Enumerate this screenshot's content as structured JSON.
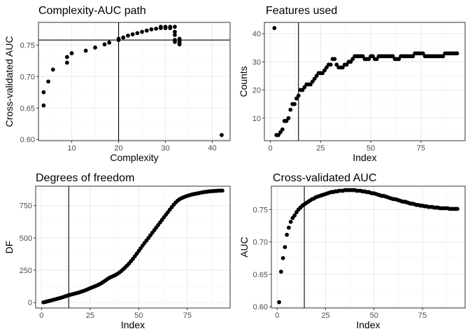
{
  "chart_data": [
    {
      "type": "scatter",
      "title": "Complexity-AUC path",
      "xlabel": "Complexity",
      "ylabel": "Cross-validated AUC",
      "xlim": [
        2.9,
        43.8
      ],
      "ylim": [
        0.598,
        0.786
      ],
      "xticks": [
        10,
        20,
        30,
        40
      ],
      "xtick_labels": [
        "10",
        "20",
        "30",
        "40"
      ],
      "yticks": [
        0.6,
        0.65,
        0.7,
        0.75
      ],
      "ytick_labels": [
        "0.60",
        "0.65",
        "0.70",
        "0.75"
      ],
      "grid": true,
      "reference_lines": {
        "vertical": 20,
        "horizontal": 0.758
      },
      "x": [
        4,
        4,
        5,
        6,
        9,
        9,
        10,
        13,
        15,
        17,
        18,
        20,
        20,
        21,
        22,
        23,
        24,
        25,
        26,
        27,
        28,
        29,
        29,
        30,
        30,
        31,
        31,
        32,
        32,
        32,
        32,
        33,
        33,
        32,
        33,
        33,
        33,
        42
      ],
      "y": [
        0.654,
        0.675,
        0.692,
        0.711,
        0.722,
        0.731,
        0.737,
        0.741,
        0.746,
        0.751,
        0.754,
        0.758,
        0.76,
        0.762,
        0.765,
        0.767,
        0.769,
        0.771,
        0.773,
        0.775,
        0.776,
        0.777,
        0.779,
        0.777,
        0.779,
        0.777,
        0.779,
        0.779,
        0.771,
        0.766,
        0.758,
        0.76,
        0.753,
        0.755,
        0.752,
        0.756,
        0.751,
        0.607
      ]
    },
    {
      "type": "scatter",
      "title": "Features used",
      "xlabel": "Index",
      "ylabel": "Counts",
      "xlim": [
        -3,
        97
      ],
      "ylim": [
        2,
        44
      ],
      "xticks": [
        0,
        25,
        50,
        75
      ],
      "xtick_labels": [
        "0",
        "25",
        "50",
        "75"
      ],
      "yticks": [
        10,
        20,
        30,
        40
      ],
      "ytick_labels": [
        "10",
        "20",
        "30",
        "40"
      ],
      "grid": true,
      "reference_lines": {
        "vertical": 14
      },
      "x": [
        2,
        3,
        4,
        5,
        6,
        7,
        8,
        9,
        10,
        11,
        12,
        13,
        14,
        15,
        16,
        17,
        18,
        19,
        20,
        21,
        22,
        23,
        24,
        25,
        26,
        27,
        28,
        29,
        30,
        31,
        32,
        33,
        34,
        35,
        36,
        37,
        38,
        39,
        40,
        41,
        42,
        43,
        44,
        45,
        46,
        47,
        48,
        49,
        50,
        51,
        52,
        53,
        54,
        55,
        56,
        57,
        58,
        59,
        60,
        61,
        62,
        63,
        64,
        65,
        66,
        67,
        68,
        69,
        70,
        71,
        72,
        73,
        74,
        75,
        76,
        77,
        78,
        79,
        80,
        81,
        82,
        83,
        84,
        85,
        86,
        87,
        88,
        89,
        90,
        91,
        92,
        93
      ],
      "y": [
        42,
        4,
        4,
        5,
        6,
        9,
        9,
        10,
        13,
        15,
        15,
        17,
        18,
        20,
        20,
        21,
        22,
        22,
        22,
        23,
        24,
        25,
        26,
        26,
        26,
        27,
        28,
        29,
        29,
        31,
        31,
        29,
        28,
        28,
        28,
        29,
        29,
        30,
        30,
        31,
        32,
        32,
        32,
        32,
        32,
        31,
        31,
        31,
        32,
        32,
        31,
        31,
        32,
        32,
        32,
        32,
        32,
        32,
        32,
        32,
        31,
        31,
        31,
        32,
        32,
        32,
        32,
        32,
        32,
        32,
        33,
        33,
        33,
        33,
        33,
        32,
        32,
        32,
        32,
        32,
        32,
        32,
        32,
        32,
        32,
        33,
        33,
        33,
        33,
        33,
        33,
        33
      ]
    },
    {
      "type": "scatter",
      "title": "Degrees of freedom",
      "xlabel": "Index",
      "ylabel": "DF",
      "xlim": [
        -3,
        97
      ],
      "ylim": [
        -42,
        900
      ],
      "xticks": [
        0,
        25,
        50,
        75
      ],
      "xtick_labels": [
        "0",
        "25",
        "50",
        "75"
      ],
      "yticks": [
        0,
        250,
        500,
        750
      ],
      "ytick_labels": [
        "0",
        "250",
        "500",
        "750"
      ],
      "grid": true,
      "reference_lines": {
        "vertical": 14
      },
      "x": [
        1,
        2,
        3,
        4,
        5,
        6,
        7,
        8,
        9,
        10,
        11,
        12,
        13,
        14,
        15,
        16,
        17,
        18,
        19,
        20,
        21,
        22,
        23,
        24,
        25,
        26,
        27,
        28,
        29,
        30,
        31,
        32,
        33,
        34,
        35,
        36,
        37,
        38,
        39,
        40,
        41,
        42,
        43,
        44,
        45,
        46,
        47,
        48,
        49,
        50,
        51,
        52,
        53,
        54,
        55,
        56,
        57,
        58,
        59,
        60,
        61,
        62,
        63,
        64,
        65,
        66,
        67,
        68,
        69,
        70,
        71,
        72,
        73,
        74,
        75,
        76,
        77,
        78,
        79,
        80,
        81,
        82,
        83,
        84,
        85,
        86,
        87,
        88,
        89,
        90,
        91,
        92,
        93
      ],
      "y": [
        2,
        5,
        9,
        13,
        17,
        21,
        25,
        29,
        33,
        37,
        42,
        47,
        52,
        57,
        61,
        65,
        69,
        73,
        77,
        82,
        87,
        92,
        98,
        104,
        111,
        117,
        123,
        129,
        136,
        143,
        152,
        162,
        172,
        183,
        192,
        199,
        206,
        213,
        222,
        232,
        244,
        257,
        271,
        286,
        302,
        320,
        338,
        358,
        378,
        399,
        420,
        441,
        461,
        480,
        500,
        520,
        540,
        560,
        580,
        600,
        620,
        640,
        660,
        680,
        699,
        719,
        738,
        757,
        774,
        788,
        799,
        807,
        814,
        820,
        825,
        830,
        834,
        838,
        841,
        844,
        847,
        850,
        853,
        855,
        857,
        859,
        861,
        862,
        863,
        864,
        865,
        866,
        866
      ]
    },
    {
      "type": "scatter",
      "title": "Cross-validated AUC",
      "xlabel": "Index",
      "ylabel": "AUC",
      "xlim": [
        -3,
        97
      ],
      "ylim": [
        0.598,
        0.786
      ],
      "xticks": [
        0,
        25,
        50,
        75
      ],
      "xtick_labels": [
        "0",
        "25",
        "50",
        "75"
      ],
      "yticks": [
        0.6,
        0.65,
        0.7,
        0.75
      ],
      "ytick_labels": [
        "0.60",
        "0.65",
        "0.70",
        "0.75"
      ],
      "grid": true,
      "reference_lines": {
        "vertical": 14
      },
      "x": [
        1,
        2,
        3,
        4,
        5,
        6,
        7,
        8,
        9,
        10,
        11,
        12,
        13,
        14,
        15,
        16,
        17,
        18,
        19,
        20,
        21,
        22,
        23,
        24,
        25,
        26,
        27,
        28,
        29,
        30,
        31,
        32,
        33,
        34,
        35,
        36,
        37,
        38,
        39,
        40,
        41,
        42,
        43,
        44,
        45,
        46,
        47,
        48,
        49,
        50,
        51,
        52,
        53,
        54,
        55,
        56,
        57,
        58,
        59,
        60,
        61,
        62,
        63,
        64,
        65,
        66,
        67,
        68,
        69,
        70,
        71,
        72,
        73,
        74,
        75,
        76,
        77,
        78,
        79,
        80,
        81,
        82,
        83,
        84,
        85,
        86,
        87,
        88,
        89,
        90,
        91,
        92,
        93
      ],
      "y": [
        0.607,
        0.654,
        0.675,
        0.692,
        0.711,
        0.722,
        0.731,
        0.737,
        0.741,
        0.746,
        0.75,
        0.753,
        0.756,
        0.758,
        0.76,
        0.762,
        0.764,
        0.766,
        0.767,
        0.769,
        0.77,
        0.771,
        0.772,
        0.773,
        0.774,
        0.775,
        0.776,
        0.777,
        0.777,
        0.778,
        0.778,
        0.779,
        0.779,
        0.779,
        0.78,
        0.78,
        0.78,
        0.78,
        0.78,
        0.78,
        0.779,
        0.779,
        0.779,
        0.778,
        0.778,
        0.777,
        0.777,
        0.776,
        0.775,
        0.775,
        0.774,
        0.773,
        0.772,
        0.771,
        0.771,
        0.77,
        0.769,
        0.768,
        0.767,
        0.766,
        0.766,
        0.765,
        0.764,
        0.763,
        0.762,
        0.762,
        0.761,
        0.76,
        0.759,
        0.759,
        0.758,
        0.757,
        0.757,
        0.756,
        0.756,
        0.755,
        0.755,
        0.754,
        0.754,
        0.754,
        0.753,
        0.753,
        0.753,
        0.752,
        0.752,
        0.752,
        0.752,
        0.752,
        0.751,
        0.751,
        0.751,
        0.751,
        0.751
      ]
    }
  ]
}
